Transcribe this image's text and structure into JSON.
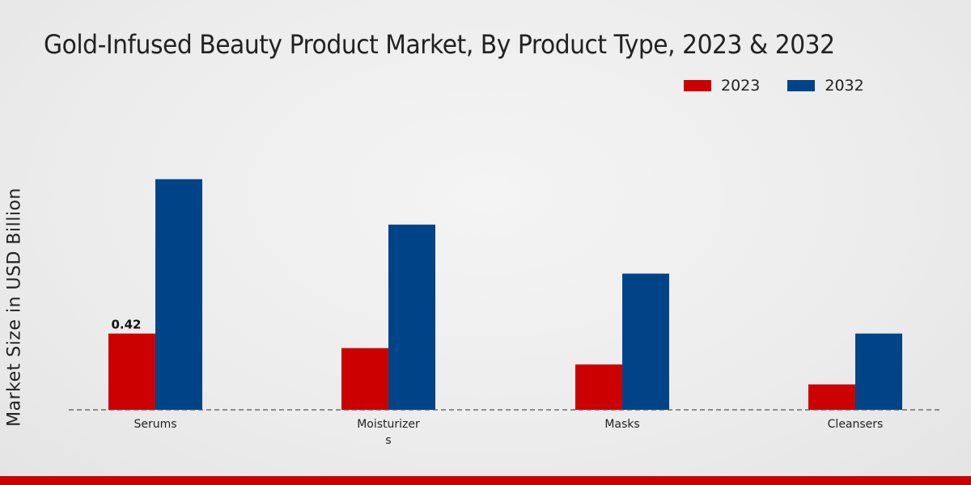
{
  "chart_data": {
    "type": "bar",
    "title": "Gold-Infused Beauty Product Market, By Product Type, 2023 & 2032",
    "xlabel": "",
    "ylabel": "Market Size in USD Billion",
    "categories": [
      "Serums",
      "Moisturizers",
      "Masks",
      "Cleansers"
    ],
    "series": [
      {
        "name": "2023",
        "color": "#cc0000",
        "values": [
          0.42,
          0.34,
          0.25,
          0.14
        ]
      },
      {
        "name": "2032",
        "color": "#004488",
        "values": [
          1.27,
          1.02,
          0.75,
          0.42
        ]
      }
    ],
    "data_labels": [
      {
        "series": 0,
        "index": 0,
        "text": "0.42"
      }
    ],
    "ylim": [
      0,
      1.5
    ],
    "grid": false,
    "legend": "top-right"
  }
}
